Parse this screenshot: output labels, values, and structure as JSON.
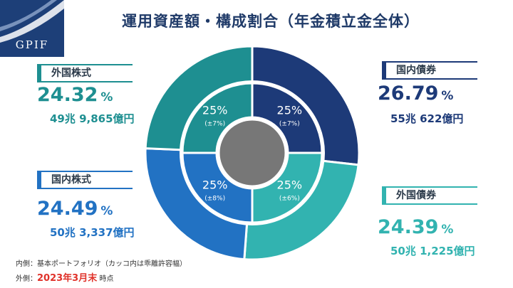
{
  "title": "運用資産額・構成割合（年金積立金全体）",
  "logo": {
    "text": "GPIF"
  },
  "colors": {
    "foreign_equity": "#1e8f91",
    "domestic_bond": "#1d3a78",
    "domestic_equity": "#2272c3",
    "foreign_bond": "#32b3b0",
    "center": "#777777",
    "title": "#1f3a68",
    "red": "#e0322a"
  },
  "labels": {
    "foreign_equity": {
      "name": "外国株式",
      "pct": "24.32",
      "pct_sign": "%",
      "amount": "49兆 9,865億円"
    },
    "domestic_bond": {
      "name": "国内債券",
      "pct": "26.79",
      "pct_sign": "%",
      "amount": "55兆 622億円"
    },
    "domestic_equity": {
      "name": "国内株式",
      "pct": "24.49",
      "pct_sign": "%",
      "amount": "50兆 3,337億円"
    },
    "foreign_bond": {
      "name": "外国債券",
      "pct": "24.39",
      "pct_sign": "%",
      "amount": "50兆 1,225億円"
    }
  },
  "notes": {
    "inner_prefix": "内側：",
    "inner_text": "基本ポートフォリオ（カッコ内は乖離許容幅）",
    "outer_prefix": "外側：",
    "outer_date": "2023年3月末",
    "outer_suffix": "時点"
  },
  "chart_data": {
    "type": "pie",
    "subtype": "double-donut",
    "title": "運用資産額・構成割合（年金積立金全体）",
    "outer_ring": {
      "label": "外側：2023年3月末時点",
      "slices": [
        {
          "name": "国内債券",
          "value": 26.79,
          "amount": "55兆 622億円"
        },
        {
          "name": "外国債券",
          "value": 24.39,
          "amount": "50兆 1,225億円"
        },
        {
          "name": "国内株式",
          "value": 24.49,
          "amount": "50兆 3,337億円"
        },
        {
          "name": "外国株式",
          "value": 24.32,
          "amount": "49兆 9,865億円"
        }
      ]
    },
    "inner_ring": {
      "label": "内側：基本ポートフォリオ（カッコ内は乖離許容幅）",
      "slices": [
        {
          "name": "国内債券",
          "value": 25,
          "text": "25%",
          "band": "(±7%)"
        },
        {
          "name": "外国債券",
          "value": 25,
          "text": "25%",
          "band": "(±6%)"
        },
        {
          "name": "国内株式",
          "value": 25,
          "text": "25%",
          "band": "(±8%)"
        },
        {
          "name": "外国株式",
          "value": 25,
          "text": "25%",
          "band": "(±7%)"
        }
      ]
    }
  }
}
